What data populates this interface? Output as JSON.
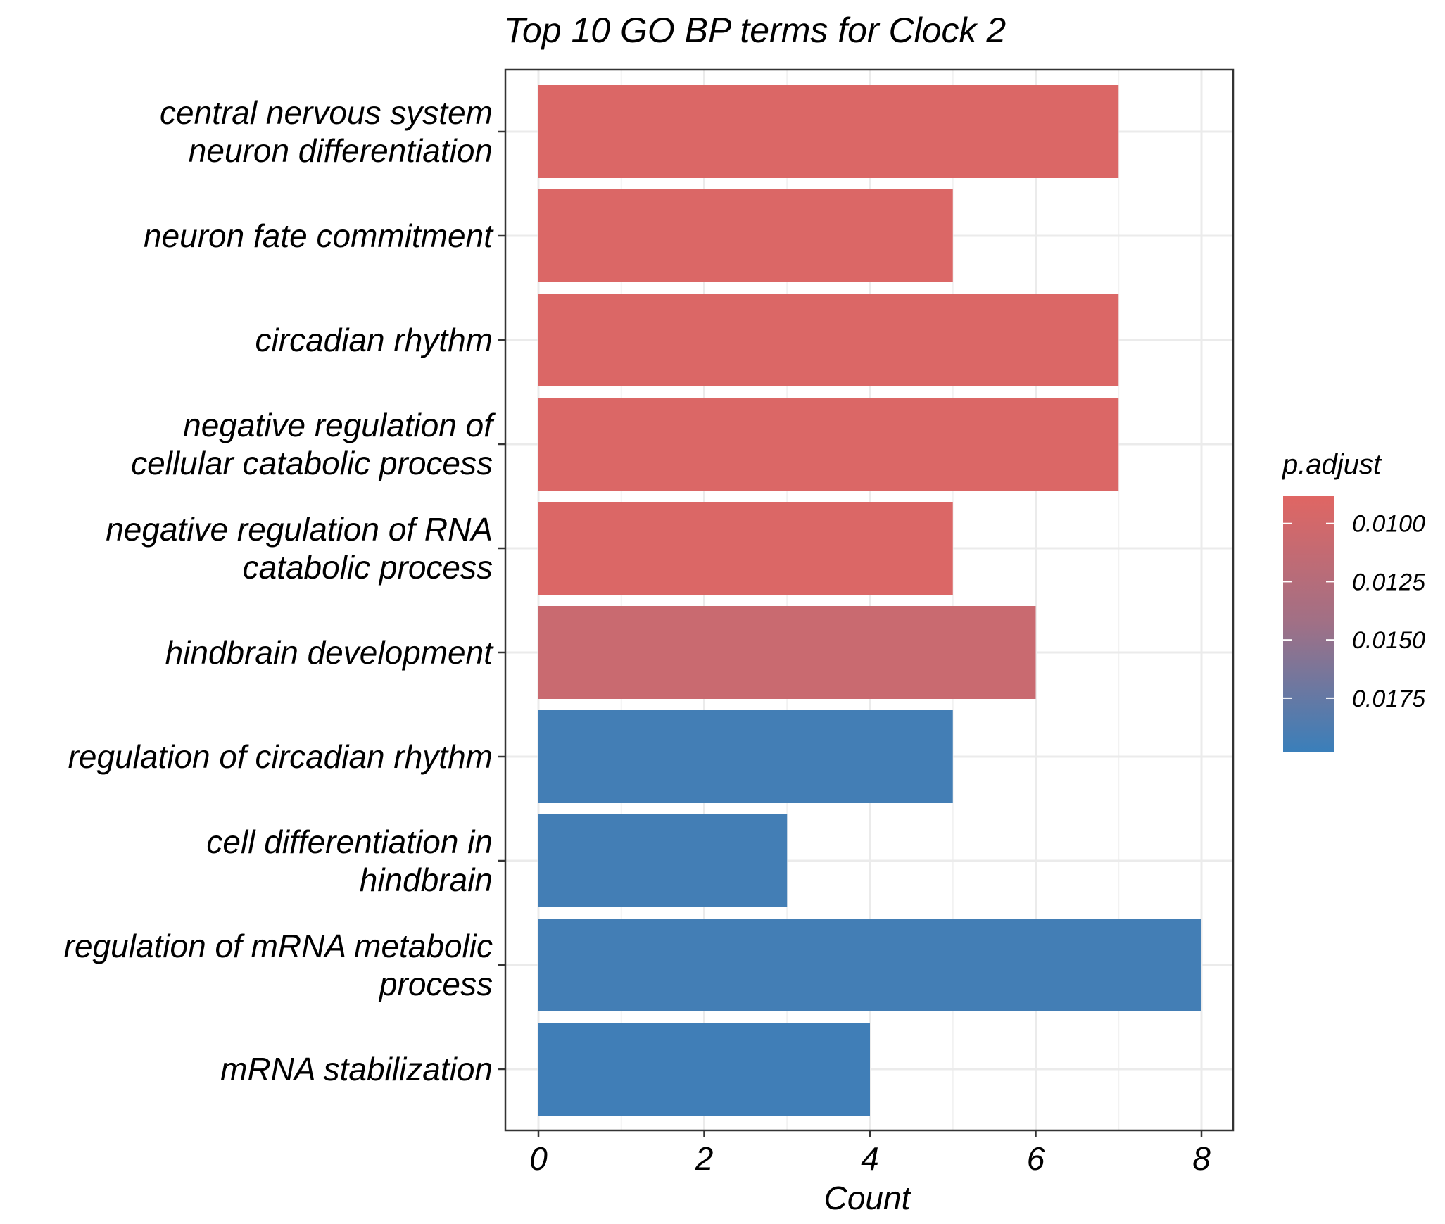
{
  "chart_data": {
    "type": "bar",
    "orientation": "horizontal",
    "title": "Top 10 GO BP terms for Clock 2",
    "xlabel": "Count",
    "ylabel": "",
    "xlim": [
      0,
      8.4
    ],
    "x_ticks": [
      0,
      2,
      4,
      6,
      8
    ],
    "x_tick_labels": [
      "0",
      "2",
      "4",
      "6",
      "8"
    ],
    "grid": true,
    "categories": [
      "central nervous system neuron differentiation",
      "neuron fate commitment",
      "circadian rhythm",
      "negative regulation of cellular catabolic process",
      "negative regulation of RNA catabolic process",
      "hindbrain development",
      "regulation of circadian rhythm",
      "cell differentiation in hindbrain",
      "regulation of mRNA metabolic process",
      "mRNA stabilization"
    ],
    "category_label_lines": [
      [
        "central nervous system",
        "neuron differentiation"
      ],
      [
        "neuron fate commitment"
      ],
      [
        "circadian rhythm"
      ],
      [
        "negative regulation of",
        "cellular catabolic process"
      ],
      [
        "negative regulation of RNA",
        "catabolic process"
      ],
      [
        "hindbrain development"
      ],
      [
        "regulation of circadian rhythm"
      ],
      [
        "cell differentiation in",
        "hindbrain"
      ],
      [
        "regulation of mRNA metabolic",
        "process"
      ],
      [
        "mRNA stabilization"
      ]
    ],
    "values": [
      7,
      5,
      7,
      7,
      5,
      6,
      5,
      3,
      8,
      4
    ],
    "p_adjust": [
      0.0092,
      0.0092,
      0.0092,
      0.0092,
      0.0092,
      0.0108,
      0.0193,
      0.0193,
      0.0193,
      0.0195
    ],
    "legend": {
      "title": "p.adjust",
      "position": "right",
      "color_low": "#E06663",
      "color_high": "#3A7FBA",
      "range": [
        0.0088,
        0.0198
      ],
      "ticks": [
        0.01,
        0.0125,
        0.015,
        0.0175
      ],
      "tick_labels": [
        "0.0100",
        "0.0125",
        "0.0150",
        "0.0175"
      ]
    }
  }
}
